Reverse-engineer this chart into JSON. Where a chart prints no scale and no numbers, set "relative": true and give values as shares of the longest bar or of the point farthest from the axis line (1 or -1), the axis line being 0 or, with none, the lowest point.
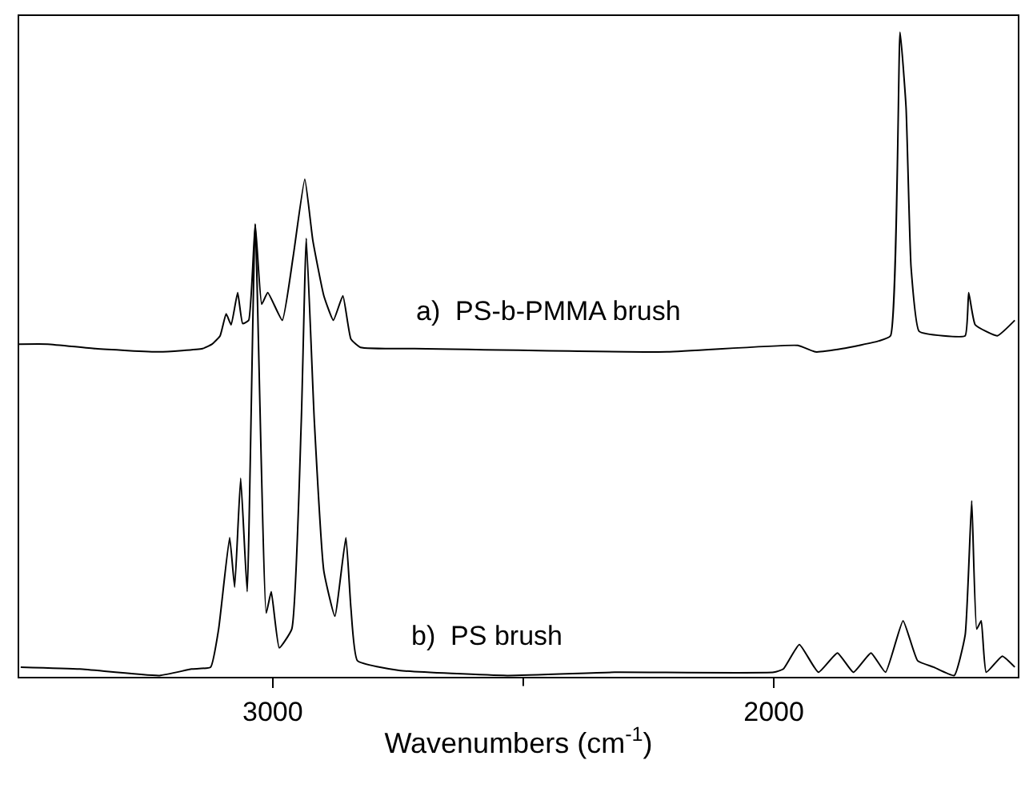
{
  "chart_data": {
    "type": "line",
    "relative": true,
    "xlabel": "Wavenumbers (cm$^{-1}$)",
    "xlim": [
      3506,
      1513
    ],
    "xticks": [
      3000,
      {
        "value": 2500,
        "label": null
      },
      2000
    ],
    "legend": false,
    "marker": "none",
    "line_style": "solid",
    "series": [
      {
        "name": "a)  PS-b-PMMA brush",
        "color": "#000000",
        "x": [
          3506,
          3449,
          3354,
          3226,
          3140,
          3121,
          3105,
          3093,
          3083,
          3070,
          3060,
          3048,
          3035,
          3022,
          3010,
          2981,
          2959,
          2936,
          2920,
          2898,
          2879,
          2860,
          2844,
          2825,
          2717,
          2213,
          1952,
          1917,
          1863,
          1790,
          1767,
          1748,
          1736,
          1726,
          1710,
          1662,
          1618,
          1611,
          1598,
          1554,
          1519
        ],
        "values": [
          0.516,
          0.516,
          0.509,
          0.504,
          0.509,
          0.516,
          0.529,
          0.563,
          0.546,
          0.596,
          0.548,
          0.553,
          0.702,
          0.578,
          0.596,
          0.553,
          0.653,
          0.772,
          0.677,
          0.591,
          0.553,
          0.591,
          0.524,
          0.511,
          0.509,
          0.504,
          0.514,
          0.504,
          0.509,
          0.521,
          0.529,
          1.0,
          0.883,
          0.635,
          0.536,
          0.529,
          0.529,
          0.596,
          0.546,
          0.529,
          0.553
        ]
      },
      {
        "name": "b)  PS brush",
        "color": "#000000",
        "x": [
          3503,
          3385,
          3226,
          3162,
          3124,
          3108,
          3086,
          3076,
          3064,
          3051,
          3035,
          3013,
          3003,
          2987,
          2962,
          2943,
          2933,
          2917,
          2898,
          2876,
          2854,
          2844,
          2831,
          2748,
          2532,
          2318,
          2000,
          1981,
          1949,
          1911,
          1873,
          1841,
          1806,
          1777,
          1742,
          1713,
          1681,
          1640,
          1618,
          1605,
          1595,
          1586,
          1576,
          1544,
          1519
        ],
        "values": [
          0.015,
          0.012,
          0.002,
          0.012,
          0.015,
          0.074,
          0.216,
          0.139,
          0.308,
          0.132,
          0.702,
          0.099,
          0.132,
          0.045,
          0.074,
          0.397,
          0.68,
          0.397,
          0.164,
          0.094,
          0.216,
          0.107,
          0.025,
          0.01,
          0.002,
          0.007,
          0.007,
          0.012,
          0.05,
          0.007,
          0.037,
          0.007,
          0.037,
          0.007,
          0.087,
          0.025,
          0.015,
          0.002,
          0.065,
          0.273,
          0.074,
          0.087,
          0.007,
          0.032,
          0.015
        ]
      }
    ]
  }
}
